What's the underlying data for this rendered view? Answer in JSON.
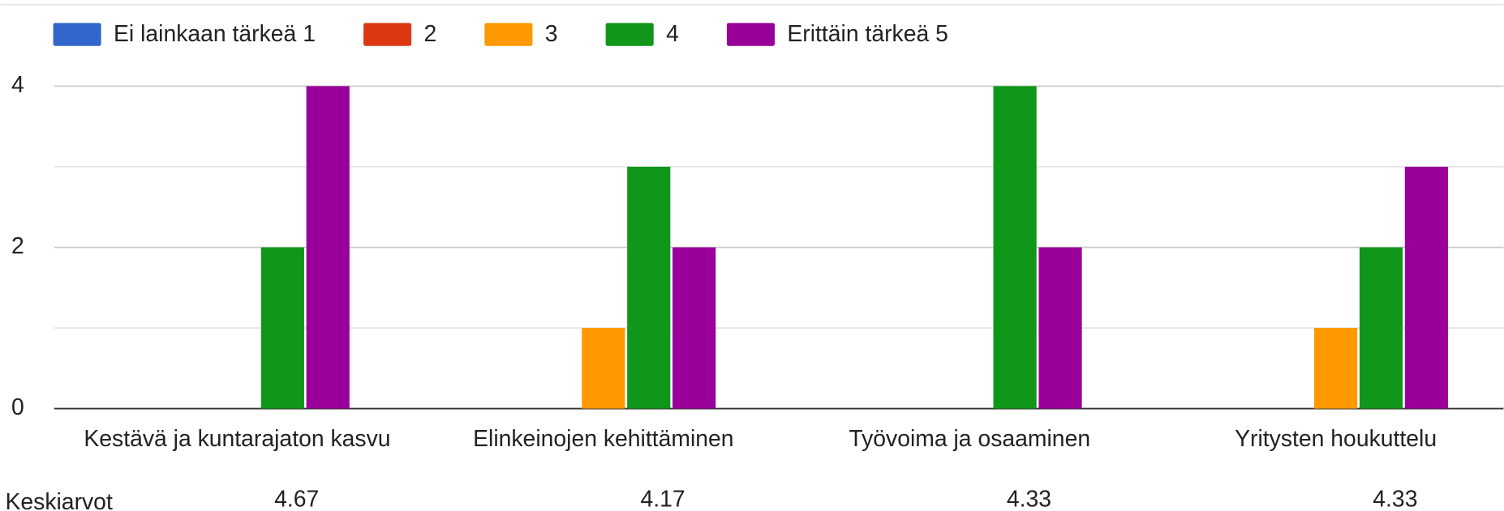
{
  "chart_data": {
    "type": "bar",
    "categories": [
      "Kestävä ja kuntarajaton kasvu",
      "Elinkeinojen kehittäminen",
      "Työvoima ja osaaminen",
      "Yritysten houkuttelu"
    ],
    "series": [
      {
        "name": "Ei lainkaan tärkeä 1",
        "color": "#3366cc",
        "values": [
          0,
          0,
          0,
          0
        ]
      },
      {
        "name": "2",
        "color": "#dc3912",
        "values": [
          0,
          0,
          0,
          0
        ]
      },
      {
        "name": "3",
        "color": "#ff9900",
        "values": [
          0,
          1,
          0,
          1
        ]
      },
      {
        "name": "4",
        "color": "#109618",
        "values": [
          2,
          3,
          4,
          2
        ]
      },
      {
        "name": "Erittäin tärkeä 5",
        "color": "#990099",
        "values": [
          4,
          2,
          2,
          3
        ]
      }
    ],
    "ylim": [
      0,
      4
    ],
    "yticks": [
      0,
      2,
      4
    ],
    "minor_yticks": [
      1,
      3
    ],
    "grid": true,
    "legend": "top",
    "averages": {
      "label": "Keskiarvot",
      "values": [
        4.67,
        4.17,
        4.33,
        4.33
      ]
    }
  }
}
